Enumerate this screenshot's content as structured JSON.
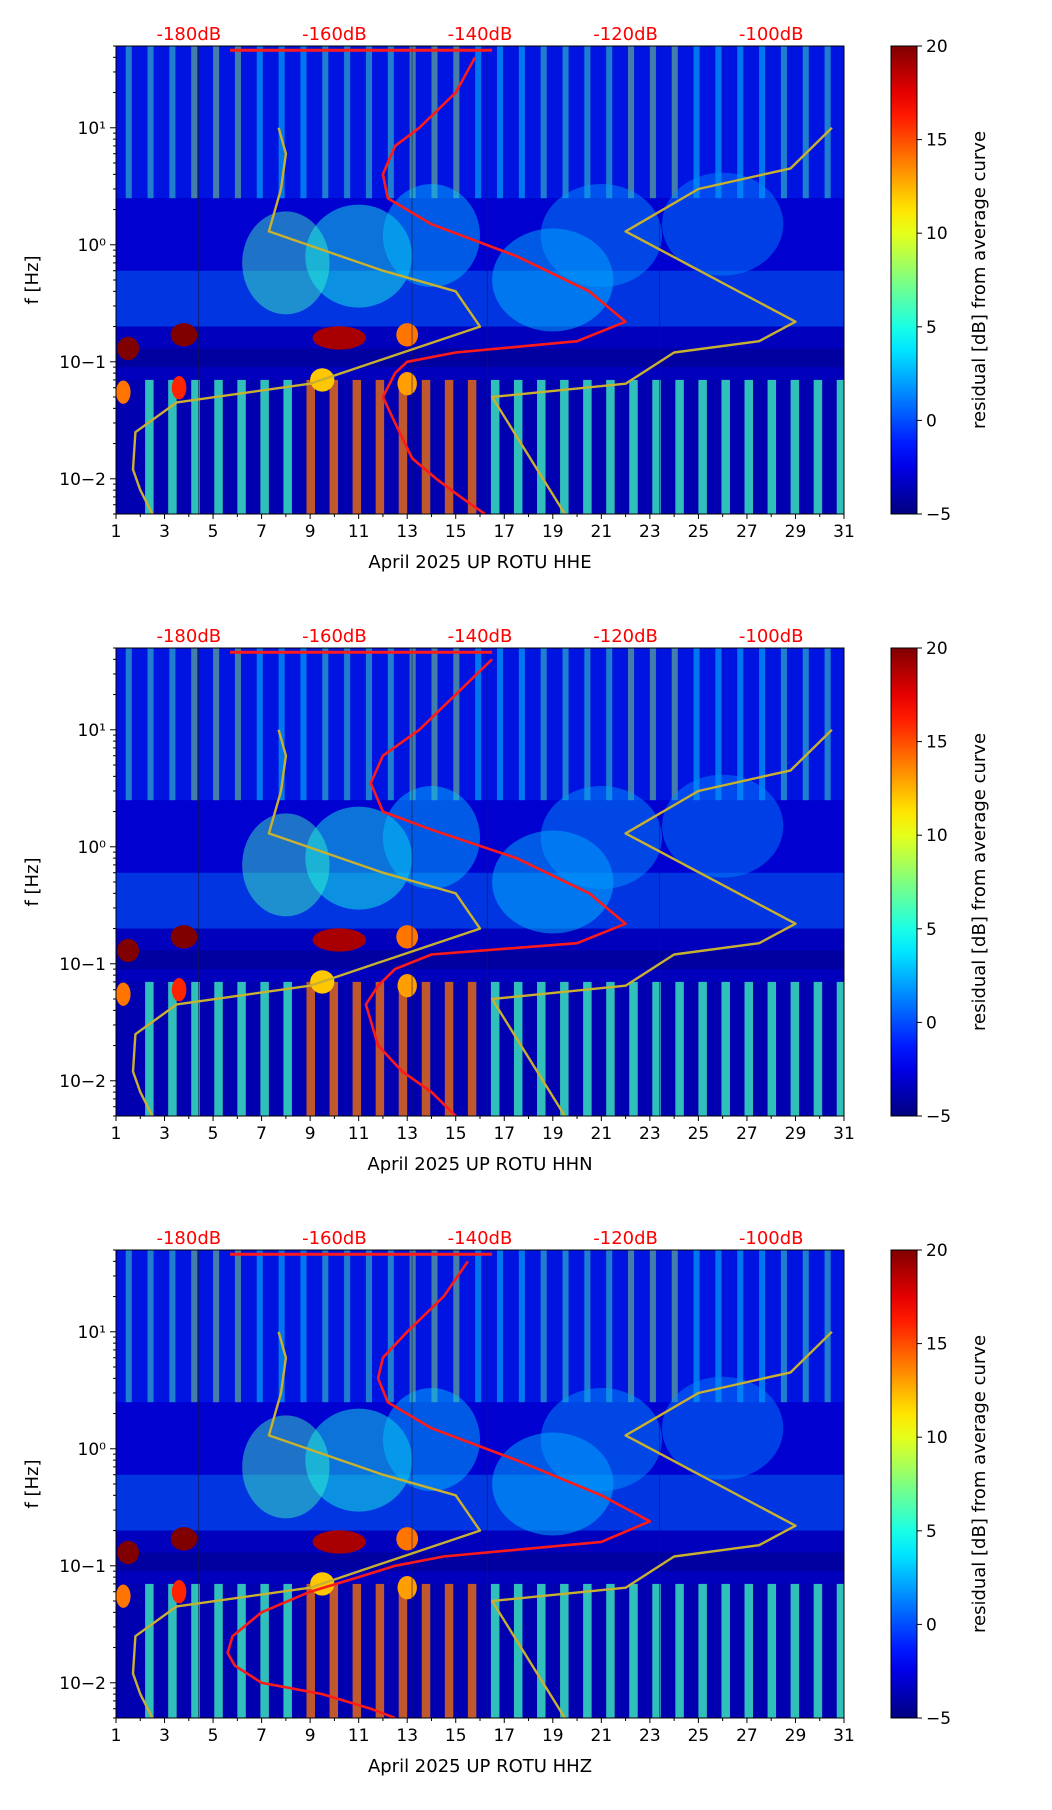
{
  "colors": {
    "accent_label": "#ff0000",
    "psd_curve": "#ff1a1a",
    "noise_model": "#c8b030",
    "axis": "#000000",
    "colormap": "jet"
  },
  "chart_data": [
    {
      "type": "heatmap",
      "panel": "HHE",
      "xlabel": "April 2025 UP ROTU  HHE",
      "ylabel": "f [Hz]",
      "xlim": [
        1,
        31
      ],
      "ylim": [
        0.005,
        50
      ],
      "yscale": "log",
      "xticks": [
        1,
        3,
        5,
        7,
        9,
        11,
        13,
        15,
        17,
        19,
        21,
        23,
        25,
        27,
        29,
        31
      ],
      "xtick_labels": [
        "1",
        "3",
        "5",
        "7",
        "9",
        "11",
        "13",
        "15",
        "17",
        "19",
        "21",
        "23",
        "25",
        "27",
        "29",
        "31"
      ],
      "yticks": [
        0.01,
        0.1,
        1,
        10
      ],
      "ytick_labels": [
        "10−2",
        "10−1",
        "10⁰",
        "10¹"
      ],
      "top_labels": [
        {
          "text": "-180dB",
          "x": 4.0
        },
        {
          "text": "-160dB",
          "x": 10.0
        },
        {
          "text": "-140dB",
          "x": 16.0
        },
        {
          "text": "-120dB",
          "x": 22.0
        },
        {
          "text": "-100dB",
          "x": 28.0
        }
      ],
      "colorbar": {
        "label": "residual [dB] from average curve",
        "min": -5,
        "max": 20,
        "ticks": [
          -5,
          0,
          5,
          10,
          15,
          20
        ],
        "tick_labels": [
          "−5",
          "0",
          "5",
          "10",
          "15",
          "20"
        ]
      },
      "series": [
        {
          "name": "psd",
          "x": [
            15.8,
            15.0,
            13.5,
            12.5,
            12.0,
            12.2,
            14.0,
            17.5,
            20.5,
            22.0,
            20.0,
            15.0,
            13.0,
            12.5,
            12.0,
            12.5,
            13.2,
            14.2,
            15.2,
            16.2
          ],
          "f": [
            40,
            20,
            10,
            7,
            4,
            2.5,
            1.5,
            0.8,
            0.4,
            0.22,
            0.15,
            0.12,
            0.1,
            0.08,
            0.05,
            0.03,
            0.015,
            0.01,
            0.007,
            0.005
          ]
        },
        {
          "name": "nlnm",
          "x": [
            2.5,
            2.0,
            1.7,
            1.8,
            3.5,
            9.0,
            16.0,
            15.0,
            12.0,
            7.3,
            7.8,
            8.0,
            7.7
          ],
          "f": [
            0.005,
            0.008,
            0.012,
            0.025,
            0.045,
            0.065,
            0.2,
            0.4,
            0.6,
            1.3,
            3,
            6,
            10
          ]
        },
        {
          "name": "nhnm",
          "x": [
            19.5,
            16.5,
            22.0,
            24.0,
            27.5,
            29.0,
            22.0,
            25.0,
            28.8,
            30.5
          ],
          "f": [
            0.005,
            0.05,
            0.065,
            0.12,
            0.15,
            0.22,
            1.3,
            3,
            4.5,
            10
          ]
        }
      ]
    },
    {
      "type": "heatmap",
      "panel": "HHN",
      "xlabel": "April 2025 UP ROTU  HHN",
      "ylabel": "f [Hz]",
      "xlim": [
        1,
        31
      ],
      "ylim": [
        0.005,
        50
      ],
      "yscale": "log",
      "xticks": [
        1,
        3,
        5,
        7,
        9,
        11,
        13,
        15,
        17,
        19,
        21,
        23,
        25,
        27,
        29,
        31
      ],
      "xtick_labels": [
        "1",
        "3",
        "5",
        "7",
        "9",
        "11",
        "13",
        "15",
        "17",
        "19",
        "21",
        "23",
        "25",
        "27",
        "29",
        "31"
      ],
      "yticks": [
        0.01,
        0.1,
        1,
        10
      ],
      "ytick_labels": [
        "10−2",
        "10−1",
        "10⁰",
        "10¹"
      ],
      "top_labels": [
        {
          "text": "-180dB",
          "x": 4.0
        },
        {
          "text": "-160dB",
          "x": 10.0
        },
        {
          "text": "-140dB",
          "x": 16.0
        },
        {
          "text": "-120dB",
          "x": 22.0
        },
        {
          "text": "-100dB",
          "x": 28.0
        }
      ],
      "colorbar": {
        "label": "residual [dB] from average curve",
        "min": -5,
        "max": 20,
        "ticks": [
          -5,
          0,
          5,
          10,
          15,
          20
        ],
        "tick_labels": [
          "−5",
          "0",
          "5",
          "10",
          "15",
          "20"
        ]
      },
      "series": [
        {
          "name": "psd",
          "x": [
            16.5,
            15.0,
            13.5,
            12.0,
            11.5,
            12.0,
            14.0,
            17.5,
            20.5,
            22.0,
            20.0,
            14.0,
            12.5,
            11.8,
            11.3,
            11.8,
            12.8,
            14.0,
            15.0
          ],
          "f": [
            40,
            20,
            10,
            6,
            3.5,
            2,
            1.4,
            0.8,
            0.4,
            0.22,
            0.15,
            0.12,
            0.09,
            0.065,
            0.045,
            0.02,
            0.012,
            0.008,
            0.005
          ]
        },
        {
          "name": "nlnm",
          "x": [
            2.5,
            2.0,
            1.7,
            1.8,
            3.5,
            9.0,
            16.0,
            15.0,
            12.0,
            7.3,
            7.8,
            8.0,
            7.7
          ],
          "f": [
            0.005,
            0.008,
            0.012,
            0.025,
            0.045,
            0.065,
            0.2,
            0.4,
            0.6,
            1.3,
            3,
            6,
            10
          ]
        },
        {
          "name": "nhnm",
          "x": [
            19.5,
            16.5,
            22.0,
            24.0,
            27.5,
            29.0,
            22.0,
            25.0,
            28.8,
            30.5
          ],
          "f": [
            0.005,
            0.05,
            0.065,
            0.12,
            0.15,
            0.22,
            1.3,
            3,
            4.5,
            10
          ]
        }
      ]
    },
    {
      "type": "heatmap",
      "panel": "HHZ",
      "xlabel": "April 2025 UP ROTU  HHZ",
      "ylabel": "f [Hz]",
      "xlim": [
        1,
        31
      ],
      "ylim": [
        0.005,
        50
      ],
      "yscale": "log",
      "xticks": [
        1,
        3,
        5,
        7,
        9,
        11,
        13,
        15,
        17,
        19,
        21,
        23,
        25,
        27,
        29,
        31
      ],
      "xtick_labels": [
        "1",
        "3",
        "5",
        "7",
        "9",
        "11",
        "13",
        "15",
        "17",
        "19",
        "21",
        "23",
        "25",
        "27",
        "29",
        "31"
      ],
      "yticks": [
        0.01,
        0.1,
        1,
        10
      ],
      "ytick_labels": [
        "10−2",
        "10−1",
        "10⁰",
        "10¹"
      ],
      "top_labels": [
        {
          "text": "-180dB",
          "x": 4.0
        },
        {
          "text": "-160dB",
          "x": 10.0
        },
        {
          "text": "-140dB",
          "x": 16.0
        },
        {
          "text": "-120dB",
          "x": 22.0
        },
        {
          "text": "-100dB",
          "x": 28.0
        }
      ],
      "colorbar": {
        "label": "residual [dB] from average curve",
        "min": -5,
        "max": 20,
        "ticks": [
          -5,
          0,
          5,
          10,
          15,
          20
        ],
        "tick_labels": [
          "−5",
          "0",
          "5",
          "10",
          "15",
          "20"
        ]
      },
      "series": [
        {
          "name": "psd",
          "x": [
            15.5,
            14.5,
            13.0,
            12.0,
            11.8,
            12.2,
            14.0,
            17.5,
            21.0,
            23.0,
            21.0,
            14.5,
            12.5,
            11.0,
            9.0,
            7.0,
            5.8,
            5.6,
            5.9,
            7.0,
            9.5,
            11.5,
            12.5
          ],
          "f": [
            40,
            20,
            10,
            6,
            4,
            2.5,
            1.5,
            0.8,
            0.4,
            0.24,
            0.16,
            0.12,
            0.1,
            0.08,
            0.06,
            0.04,
            0.025,
            0.018,
            0.014,
            0.01,
            0.008,
            0.006,
            0.005
          ]
        },
        {
          "name": "nlnm",
          "x": [
            2.5,
            2.0,
            1.7,
            1.8,
            3.5,
            9.0,
            16.0,
            15.0,
            12.0,
            7.3,
            7.8,
            8.0,
            7.7
          ],
          "f": [
            0.005,
            0.008,
            0.012,
            0.025,
            0.045,
            0.065,
            0.2,
            0.4,
            0.6,
            1.3,
            3,
            6,
            10
          ]
        },
        {
          "name": "nhnm",
          "x": [
            19.5,
            16.5,
            22.0,
            24.0,
            27.5,
            29.0,
            22.0,
            25.0,
            28.8,
            30.5
          ],
          "f": [
            0.005,
            0.05,
            0.065,
            0.12,
            0.15,
            0.22,
            1.3,
            3,
            4.5,
            10
          ]
        }
      ]
    }
  ]
}
